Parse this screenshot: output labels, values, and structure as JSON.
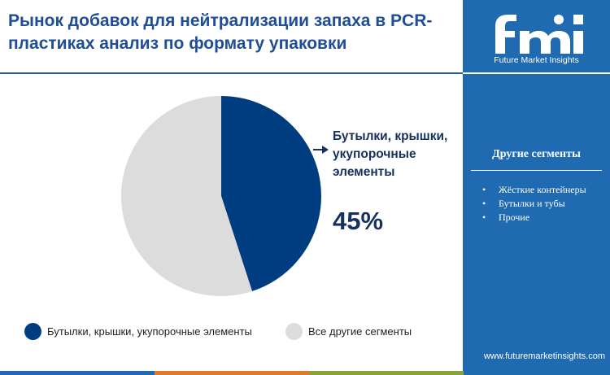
{
  "title": "Рынок добавок для нейтрализации запаха в PCR-пластиках анализ по формату упаковки",
  "brand": {
    "logo_text": "fmi",
    "name": "Future Market Insights",
    "url": "www.futuremarketinsights.com"
  },
  "sidebar": {
    "heading": "Другие сегменты",
    "items": [
      "Жёсткие контейнеры",
      "Бутылки и тубы",
      "Прочие"
    ]
  },
  "callout": {
    "label": "Бутылки, крышки, укупорочные элементы",
    "value": "45%"
  },
  "colors": {
    "primary": "#003d80",
    "secondary": "#dcdcdc",
    "sidebar": "#1f6ab0",
    "title": "#1f4e96"
  },
  "chart_data": {
    "type": "pie",
    "categories": [
      "Бутылки, крышки, укупорочные элементы",
      "Все другие сегменты"
    ],
    "values": [
      45,
      55
    ],
    "unit": "%",
    "legend": "bottom"
  }
}
